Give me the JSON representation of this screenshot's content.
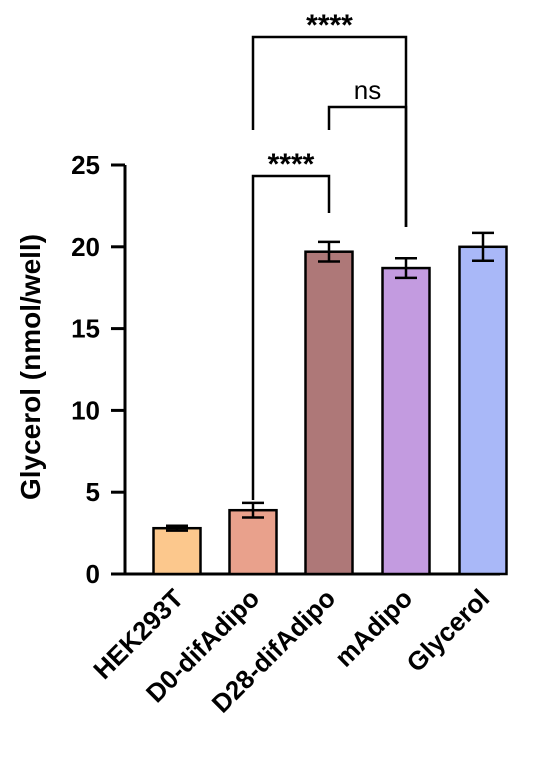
{
  "chart_data": {
    "type": "bar",
    "title": "",
    "xlabel": "",
    "ylabel": "Glycerol (nmol/well)",
    "ylim": [
      0,
      25
    ],
    "yticks": [
      0,
      5,
      10,
      15,
      20,
      25
    ],
    "grid": false,
    "categories": [
      "HEK293T",
      "D0-difAdipo",
      "D28-difAdipo",
      "mAdipo",
      "Glycerol"
    ],
    "values": [
      2.8,
      3.9,
      19.7,
      18.7,
      20.0
    ],
    "errors": [
      0.15,
      0.45,
      0.6,
      0.6,
      0.85
    ],
    "colors": [
      "#FCC88D",
      "#E9A18C",
      "#AE7878",
      "#C39BE0",
      "#A9B8F8"
    ],
    "comparisons": [
      {
        "from": 1,
        "to": 2,
        "label": "****"
      },
      {
        "from": 2,
        "to": 3,
        "label": "ns"
      },
      {
        "from": 1,
        "to": 3,
        "label": "****"
      }
    ]
  }
}
